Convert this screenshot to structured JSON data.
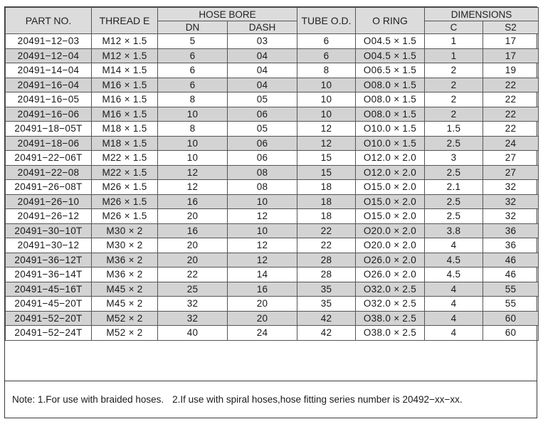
{
  "headers": {
    "part_no": "PART NO.",
    "thread": "THREAD E",
    "hose_bore": "HOSE BORE",
    "dn": "DN",
    "dash": "DASH",
    "tube_od": "TUBE O.D.",
    "o_ring": "O RING",
    "dimensions": "DIMENSIONS",
    "c": "C",
    "s2": "S2"
  },
  "rows": [
    {
      "part": "20491−12−03",
      "thread": "M12 × 1.5",
      "dn": "5",
      "dash": "03",
      "tube": "6",
      "oring": "O04.5 × 1.5",
      "c": "1",
      "s2": "17"
    },
    {
      "part": "20491−12−04",
      "thread": "M12 × 1.5",
      "dn": "6",
      "dash": "04",
      "tube": "6",
      "oring": "O04.5 × 1.5",
      "c": "1",
      "s2": "17"
    },
    {
      "part": "20491−14−04",
      "thread": "M14 × 1.5",
      "dn": "6",
      "dash": "04",
      "tube": "8",
      "oring": "O06.5 × 1.5",
      "c": "2",
      "s2": "19"
    },
    {
      "part": "20491−16−04",
      "thread": "M16 × 1.5",
      "dn": "6",
      "dash": "04",
      "tube": "10",
      "oring": "O08.0 × 1.5",
      "c": "2",
      "s2": "22"
    },
    {
      "part": "20491−16−05",
      "thread": "M16 × 1.5",
      "dn": "8",
      "dash": "05",
      "tube": "10",
      "oring": "O08.0 × 1.5",
      "c": "2",
      "s2": "22"
    },
    {
      "part": "20491−16−06",
      "thread": "M16 × 1.5",
      "dn": "10",
      "dash": "06",
      "tube": "10",
      "oring": "O08.0 × 1.5",
      "c": "2",
      "s2": "22"
    },
    {
      "part": "20491−18−05T",
      "thread": "M18 × 1.5",
      "dn": "8",
      "dash": "05",
      "tube": "12",
      "oring": "O10.0 × 1.5",
      "c": "1.5",
      "s2": "22"
    },
    {
      "part": "20491−18−06",
      "thread": "M18 × 1.5",
      "dn": "10",
      "dash": "06",
      "tube": "12",
      "oring": "O10.0 × 1.5",
      "c": "2.5",
      "s2": "24"
    },
    {
      "part": "20491−22−06T",
      "thread": "M22 × 1.5",
      "dn": "10",
      "dash": "06",
      "tube": "15",
      "oring": "O12.0 × 2.0",
      "c": "3",
      "s2": "27"
    },
    {
      "part": "20491−22−08",
      "thread": "M22 × 1.5",
      "dn": "12",
      "dash": "08",
      "tube": "15",
      "oring": "O12.0 × 2.0",
      "c": "2.5",
      "s2": "27"
    },
    {
      "part": "20491−26−08T",
      "thread": "M26 × 1.5",
      "dn": "12",
      "dash": "08",
      "tube": "18",
      "oring": "O15.0 × 2.0",
      "c": "2.1",
      "s2": "32"
    },
    {
      "part": "20491−26−10",
      "thread": "M26 × 1.5",
      "dn": "16",
      "dash": "10",
      "tube": "18",
      "oring": "O15.0 × 2.0",
      "c": "2.5",
      "s2": "32"
    },
    {
      "part": "20491−26−12",
      "thread": "M26 × 1.5",
      "dn": "20",
      "dash": "12",
      "tube": "18",
      "oring": "O15.0 × 2.0",
      "c": "2.5",
      "s2": "32"
    },
    {
      "part": "20491−30−10T",
      "thread": "M30 × 2",
      "dn": "16",
      "dash": "10",
      "tube": "22",
      "oring": "O20.0 × 2.0",
      "c": "3.8",
      "s2": "36"
    },
    {
      "part": "20491−30−12",
      "thread": "M30 × 2",
      "dn": "20",
      "dash": "12",
      "tube": "22",
      "oring": "O20.0 × 2.0",
      "c": "4",
      "s2": "36"
    },
    {
      "part": "20491−36−12T",
      "thread": "M36 × 2",
      "dn": "20",
      "dash": "12",
      "tube": "28",
      "oring": "O26.0 × 2.0",
      "c": "4.5",
      "s2": "46"
    },
    {
      "part": "20491−36−14T",
      "thread": "M36 × 2",
      "dn": "22",
      "dash": "14",
      "tube": "28",
      "oring": "O26.0 × 2.0",
      "c": "4.5",
      "s2": "46"
    },
    {
      "part": "20491−45−16T",
      "thread": "M45 × 2",
      "dn": "25",
      "dash": "16",
      "tube": "35",
      "oring": "O32.0 × 2.5",
      "c": "4",
      "s2": "55"
    },
    {
      "part": "20491−45−20T",
      "thread": "M45 × 2",
      "dn": "32",
      "dash": "20",
      "tube": "35",
      "oring": "O32.0 × 2.5",
      "c": "4",
      "s2": "55"
    },
    {
      "part": "20491−52−20T",
      "thread": "M52 × 2",
      "dn": "32",
      "dash": "20",
      "tube": "42",
      "oring": "O38.0 × 2.5",
      "c": "4",
      "s2": "60"
    },
    {
      "part": "20491−52−24T",
      "thread": "M52 × 2",
      "dn": "40",
      "dash": "24",
      "tube": "42",
      "oring": "O38.0 × 2.5",
      "c": "4",
      "s2": "60"
    }
  ],
  "note": {
    "text1": "Note: 1.For use with braided hoses.",
    "text2": "2.If use with spiral hoses,hose fitting series number is 20492−xx−xx."
  },
  "colors": {
    "header_bg": "#dcdcdc",
    "shaded_row_bg": "#d3d3d3",
    "border": "#555555"
  }
}
